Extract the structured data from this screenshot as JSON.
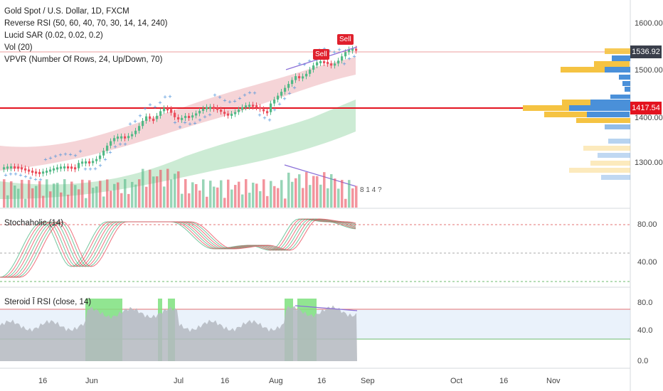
{
  "legend": {
    "title": "Gold Spot / U.S. Dollar, 1D, FXCM",
    "ind1": "Reverse RSI (50, 60, 40, 70, 30, 14, 14, 240)",
    "ind2": "Lucid SAR (0.02, 0.02, 0.2)",
    "ind3": "Vol (20)",
    "ind4": "VPVR (Number Of Rows, 24, Up/Down, 70)"
  },
  "panes": {
    "stoch_label": "Stochaholic (14)",
    "rsi_label": "Steroid Ī RSI (close, 14)"
  },
  "price_tags": {
    "current": "1536.92",
    "line": "1417.54"
  },
  "signals": [
    "Sell",
    "Sell"
  ],
  "price_axis": [
    "1600.00",
    "1500.00",
    "1400.00",
    "1300.00"
  ],
  "stoch_axis": [
    "80.00",
    "40.00"
  ],
  "rsi_axis": [
    "80.0",
    "40.0",
    "0.0"
  ],
  "time_axis": [
    "16",
    "Jun",
    "Jul",
    "16",
    "Aug",
    "16",
    "Sep",
    "Oct",
    "16",
    "Nov"
  ],
  "event_badges": "8 1 4 ?",
  "colors": {
    "up": "#53b987",
    "down": "#eb4d5c",
    "red_line": "#e3131f",
    "tag_blue": "#3a3f4b"
  }
}
